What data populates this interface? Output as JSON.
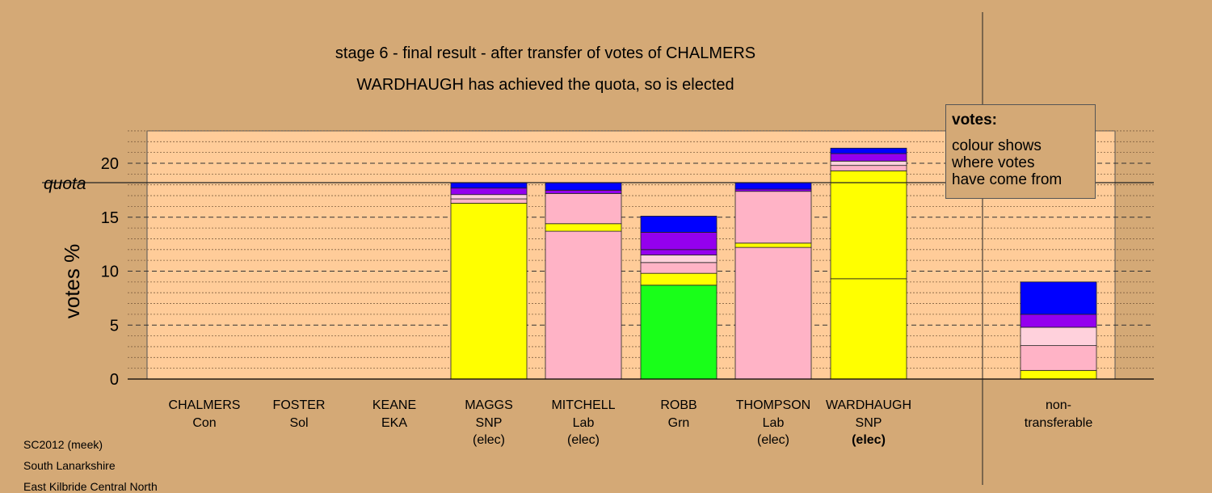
{
  "titles": {
    "line1": "stage 6 - final result - after transfer of votes of CHALMERS",
    "line2": "WARDHAUGH has achieved the quota, so is elected"
  },
  "legend": {
    "title": "votes:",
    "lines": [
      "colour shows",
      "where votes",
      "have come from"
    ]
  },
  "footer": {
    "line1": "SC2012 (meek)",
    "line2": "South Lanarkshire",
    "line3": "East Kilbride Central North"
  },
  "colors": {
    "background": "#d4a976",
    "plot_area": "#ffcc99",
    "snp": "#ffff00",
    "lab": "#ffb3c6",
    "grn": "#19ff19",
    "eka": "#ffd1dc",
    "sol": "#9400ee",
    "con": "#0000ff"
  },
  "chart_data": {
    "type": "bar",
    "stacked": true,
    "ylabel": "votes %",
    "ylim": [
      0,
      23
    ],
    "yticks": [
      0,
      5,
      10,
      15,
      20
    ],
    "quota": 18.2,
    "quota_label": "quota",
    "grid": "dashed every 1% (major every 5%)",
    "candidates": [
      {
        "name": "CHALMERS",
        "party": "Con",
        "status": "",
        "segments": []
      },
      {
        "name": "FOSTER",
        "party": "Sol",
        "status": "",
        "segments": []
      },
      {
        "name": "KEANE",
        "party": "EKA",
        "status": "",
        "segments": []
      },
      {
        "name": "MAGGS",
        "party": "SNP",
        "status": "(elec)",
        "segments": [
          {
            "source": "snp",
            "value": 16.3
          },
          {
            "source": "lab",
            "value": 0.4
          },
          {
            "source": "eka",
            "value": 0.4
          },
          {
            "source": "sol",
            "value": 0.6
          },
          {
            "source": "con",
            "value": 0.5
          }
        ]
      },
      {
        "name": "MITCHELL",
        "party": "Lab",
        "status": "(elec)",
        "segments": [
          {
            "source": "lab",
            "value": 13.7
          },
          {
            "source": "snp",
            "value": 0.7
          },
          {
            "source": "lab",
            "value": 2.8
          },
          {
            "source": "sol",
            "value": 0.3
          },
          {
            "source": "con",
            "value": 0.7
          }
        ]
      },
      {
        "name": "ROBB",
        "party": "Grn",
        "status": "",
        "segments": [
          {
            "source": "grn",
            "value": 8.7
          },
          {
            "source": "snp",
            "value": 1.1
          },
          {
            "source": "lab",
            "value": 1.0
          },
          {
            "source": "eka",
            "value": 0.7
          },
          {
            "source": "sol",
            "value": 0.5
          },
          {
            "source": "sol",
            "value": 1.6
          },
          {
            "source": "con",
            "value": 1.5
          }
        ]
      },
      {
        "name": "THOMPSON",
        "party": "Lab",
        "status": "(elec)",
        "segments": [
          {
            "source": "lab",
            "value": 12.2
          },
          {
            "source": "snp",
            "value": 0.4
          },
          {
            "source": "lab",
            "value": 4.8
          },
          {
            "source": "sol",
            "value": 0.2
          },
          {
            "source": "con",
            "value": 0.6
          }
        ]
      },
      {
        "name": "WARDHAUGH",
        "party": "SNP",
        "status": "(elec)",
        "status_bold": true,
        "segments": [
          {
            "source": "snp",
            "value": 9.3
          },
          {
            "source": "snp",
            "value": 10.0
          },
          {
            "source": "lab",
            "value": 0.5
          },
          {
            "source": "eka",
            "value": 0.4
          },
          {
            "source": "sol",
            "value": 0.7
          },
          {
            "source": "con",
            "value": 0.5
          }
        ]
      },
      {
        "name": "non-",
        "party": "transferable",
        "status": "",
        "segments": [
          {
            "source": "snp",
            "value": 0.8
          },
          {
            "source": "lab",
            "value": 2.3
          },
          {
            "source": "eka",
            "value": 1.7
          },
          {
            "source": "sol",
            "value": 1.2
          },
          {
            "source": "con",
            "value": 3.0
          }
        ]
      }
    ]
  }
}
